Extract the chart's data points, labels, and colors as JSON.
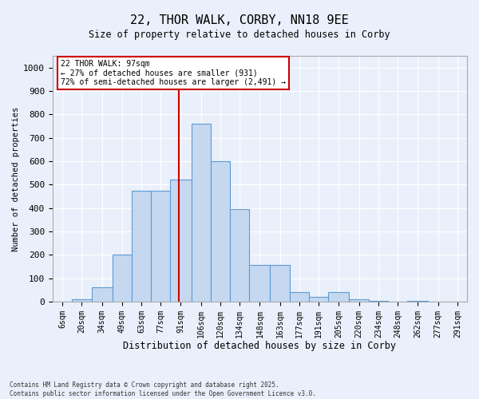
{
  "title_line1": "22, THOR WALK, CORBY, NN18 9EE",
  "title_line2": "Size of property relative to detached houses in Corby",
  "xlabel": "Distribution of detached houses by size in Corby",
  "ylabel": "Number of detached properties",
  "bins": [
    "6sqm",
    "20sqm",
    "34sqm",
    "49sqm",
    "63sqm",
    "77sqm",
    "91sqm",
    "106sqm",
    "120sqm",
    "134sqm",
    "148sqm",
    "163sqm",
    "177sqm",
    "191sqm",
    "205sqm",
    "220sqm",
    "234sqm",
    "248sqm",
    "262sqm",
    "277sqm",
    "291sqm"
  ],
  "values": [
    0,
    10,
    60,
    200,
    475,
    475,
    520,
    760,
    600,
    395,
    155,
    155,
    40,
    20,
    40,
    10,
    2,
    0,
    2,
    0,
    0
  ],
  "bar_color": "#c5d8f0",
  "bar_edge_color": "#5b9bd5",
  "vline_x": 97,
  "vline_color": "#cc0000",
  "annotation_title": "22 THOR WALK: 97sqm",
  "annotation_line1": "← 27% of detached houses are smaller (931)",
  "annotation_line2": "72% of semi-detached houses are larger (2,491) →",
  "annotation_box_color": "#cc0000",
  "ylim": [
    0,
    1050
  ],
  "yticks": [
    0,
    100,
    200,
    300,
    400,
    500,
    600,
    700,
    800,
    900,
    1000
  ],
  "bg_color": "#eaf0fb",
  "plot_bg_color": "#eaf0fb",
  "grid_color": "#ffffff",
  "footer_line1": "Contains HM Land Registry data © Crown copyright and database right 2025.",
  "footer_line2": "Contains public sector information licensed under the Open Government Licence v3.0.",
  "bin_edges": [
    6,
    20,
    34,
    49,
    63,
    77,
    91,
    106,
    120,
    134,
    148,
    163,
    177,
    191,
    205,
    220,
    234,
    248,
    262,
    277,
    291
  ]
}
